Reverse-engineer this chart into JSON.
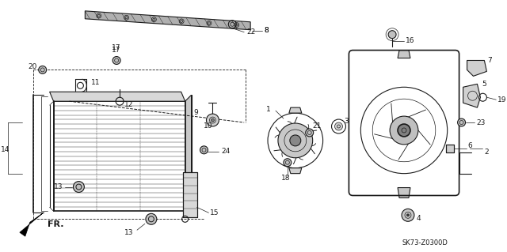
{
  "diagram_code": "SK73-Z0300D",
  "background_color": "#ffffff",
  "line_color": "#1a1a1a",
  "fig_width": 6.4,
  "fig_height": 3.19,
  "dpi": 100,
  "fr_label": "FR."
}
